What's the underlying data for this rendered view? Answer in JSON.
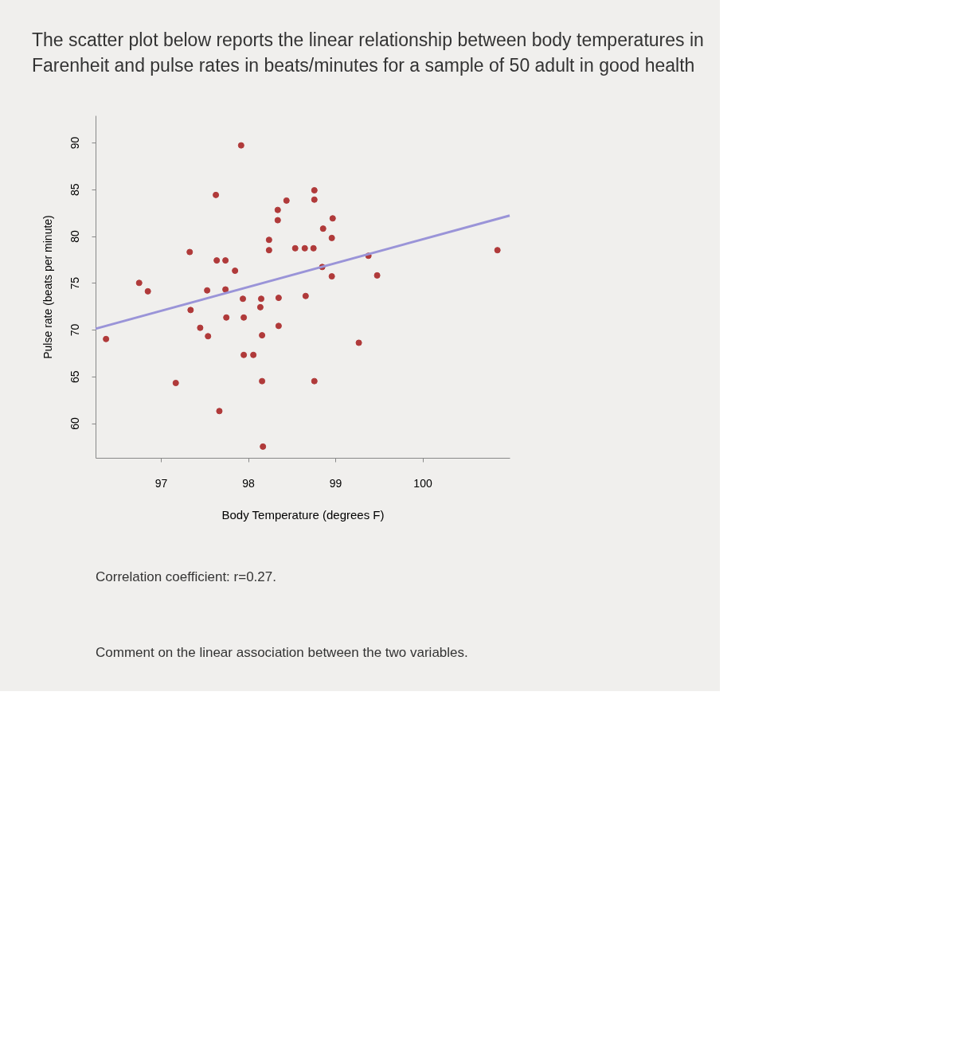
{
  "chart_data": {
    "type": "scatter",
    "title": "The scatter plot below reports the linear relationship between body temperatures in Farenheit and pulse rates in beats/minutes for a sample of 50 adult in good health",
    "xlabel": "Body Temperature (degrees F)",
    "ylabel": "Pulse rate (beats per minute)",
    "xlim": [
      96.25,
      101.0
    ],
    "ylim": [
      56.3,
      92.9
    ],
    "xticks": [
      97,
      98,
      99,
      100
    ],
    "yticks": [
      60,
      65,
      70,
      75,
      80,
      85,
      90
    ],
    "grid": false,
    "legend": false,
    "marker": "circle",
    "series": [
      {
        "color": "#b03a3a",
        "x": [
          97.92,
          97.63,
          98.76,
          98.76,
          98.44,
          98.34,
          98.34,
          98.24,
          98.24,
          98.54,
          98.65,
          98.75,
          97.33,
          97.64,
          97.74,
          97.85,
          96.75,
          96.85,
          97.53,
          97.74,
          97.94,
          98.15,
          98.35,
          98.66,
          97.34,
          98.14,
          97.75,
          97.95,
          98.35,
          97.45,
          97.54,
          96.37,
          98.16,
          97.95,
          98.06,
          97.17,
          98.16,
          97.67,
          98.17,
          98.97,
          98.86,
          98.96,
          99.38,
          100.86,
          98.85,
          98.96,
          99.48,
          99.27,
          98.76
        ],
        "values": [
          89.7,
          84.4,
          84.9,
          83.9,
          83.8,
          82.8,
          81.7,
          79.6,
          78.5,
          78.7,
          78.7,
          78.7,
          78.3,
          77.4,
          77.4,
          76.3,
          75.0,
          74.1,
          74.2,
          74.3,
          73.3,
          73.3,
          73.4,
          73.6,
          72.1,
          72.4,
          71.3,
          71.3,
          70.4,
          70.2,
          69.3,
          69.0,
          69.4,
          67.3,
          67.3,
          64.3,
          64.5,
          61.3,
          57.5,
          81.9,
          80.8,
          79.8,
          77.9,
          78.5,
          76.7,
          75.7,
          75.8,
          68.6,
          64.5
        ]
      },
      {
        "type": "line",
        "marker": "none",
        "color": "#9a94d8",
        "x": [
          96.25,
          101.0
        ],
        "values": [
          70.1,
          82.2
        ]
      }
    ],
    "annotations": [
      "Correlation coefficient: r=0.27.",
      "Comment on the linear association between the two variables."
    ]
  }
}
